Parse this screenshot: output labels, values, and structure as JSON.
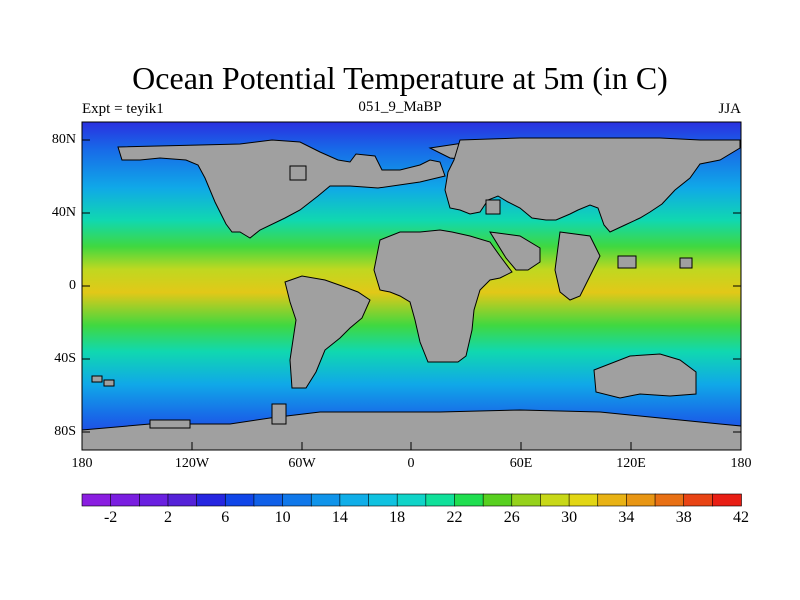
{
  "title": "Ocean Potential Temperature at 5m (in C)",
  "subtitle_left": "Expt = teyik1",
  "subtitle_center": "051_9_MaBP",
  "subtitle_right": "JJA",
  "lat_ticks": [
    "80N",
    "40N",
    "0",
    "40S",
    "80S"
  ],
  "lon_ticks": [
    "180",
    "120W",
    "60W",
    "0",
    "60E",
    "120E",
    "180"
  ],
  "colorbar": {
    "labels": [
      "-2",
      "2",
      "6",
      "10",
      "14",
      "18",
      "22",
      "26",
      "30",
      "34",
      "38",
      "42"
    ],
    "colors": [
      "#8a1ee0",
      "#7a1ee0",
      "#6a20e0",
      "#5522d8",
      "#2626e0",
      "#1046e8",
      "#1060e8",
      "#1078ea",
      "#1094ea",
      "#10aee8",
      "#10c2e0",
      "#10d4c8",
      "#10e09a",
      "#20de50",
      "#58d020",
      "#96d21c",
      "#c8d818",
      "#e2d614",
      "#e8b214",
      "#e89614",
      "#e87014",
      "#e84414",
      "#e81e14"
    ]
  },
  "map_colors": {
    "land": "#a0a0a0",
    "polar": "#2a30e0",
    "subpolar": "#1868e8",
    "cool": "#10a8e8",
    "mild": "#10d8b0",
    "warm": "#40d840",
    "hot": "#c0d820",
    "hottest": "#e2c818"
  }
}
